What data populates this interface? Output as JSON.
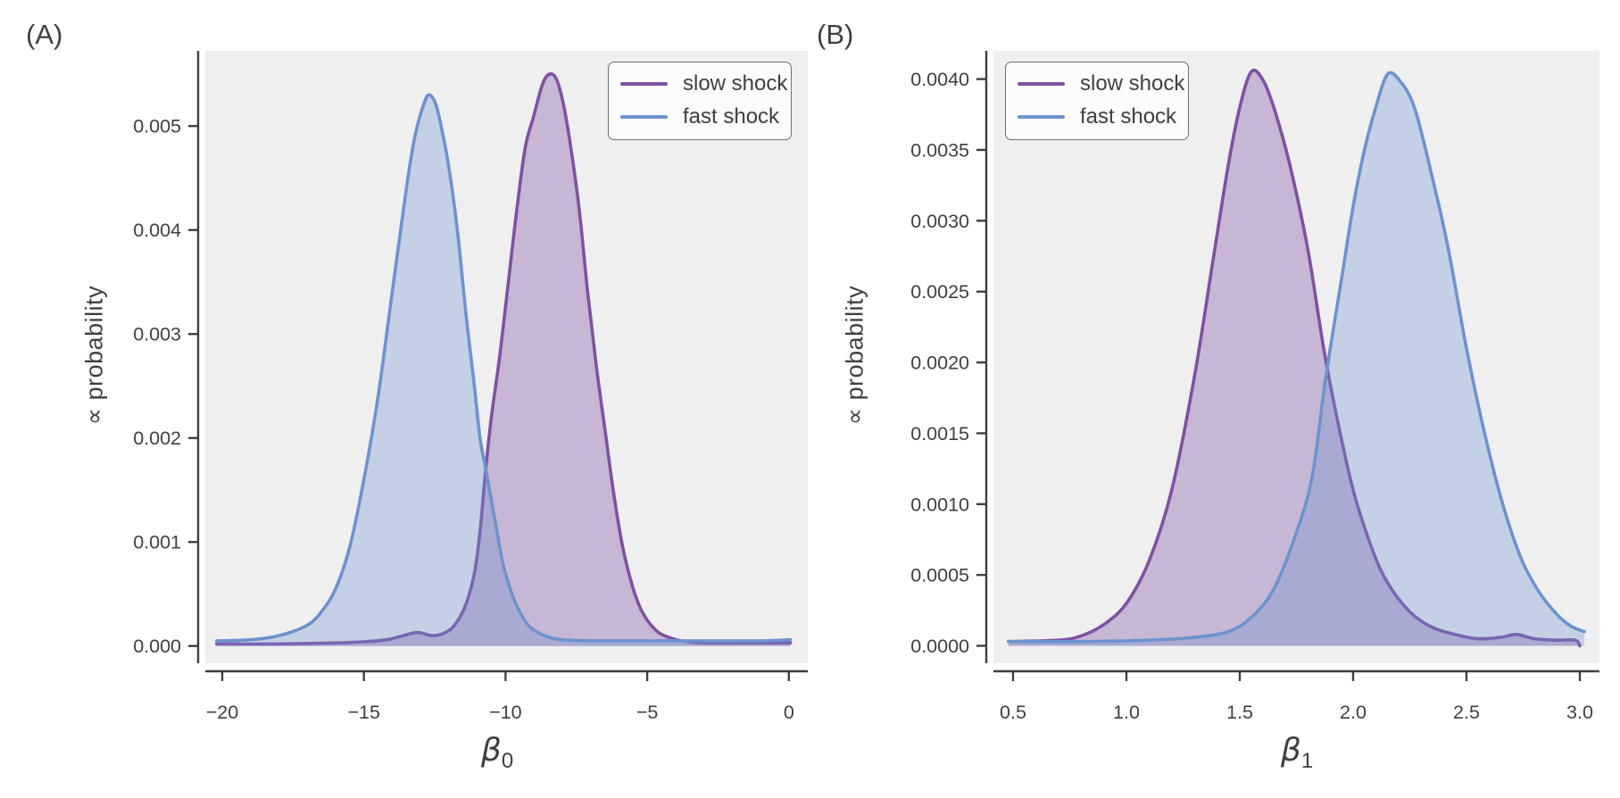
{
  "panels": [
    {
      "label": "(A)",
      "ylabel": "∝ probability",
      "xlabel_base": "β",
      "xlabel_sub": "0"
    },
    {
      "label": "(B)",
      "ylabel": "∝ probability",
      "xlabel_base": "β",
      "xlabel_sub": "1"
    }
  ],
  "legend": {
    "items": [
      {
        "label": "slow shock",
        "color": "#7e52a3"
      },
      {
        "label": "fast shock",
        "color": "#6d93ce"
      }
    ]
  },
  "colors": {
    "plot_background": "#efeff0",
    "spine": "#3d3f44",
    "tick_label": "#3d3f44",
    "slow_shock_line": "#7e52a3",
    "fast_shock_line": "#6d93ce",
    "slow_shock_fill_opacity": 0.36,
    "fast_shock_fill_opacity": 0.33
  },
  "chart_data": [
    {
      "type": "area",
      "title": "",
      "xlabel": "β₀",
      "ylabel": "∝ probability",
      "xlim": [
        -20.6,
        0.67
      ],
      "ylim": [
        0,
        0.00589
      ],
      "grid": false,
      "legend_position": "upper right",
      "xticks": [
        {
          "v": -20,
          "label": "−20"
        },
        {
          "v": -15,
          "label": "−15"
        },
        {
          "v": -10,
          "label": "−10"
        },
        {
          "v": -5,
          "label": "−5"
        },
        {
          "v": 0,
          "label": "0"
        }
      ],
      "yticks": [
        {
          "v": 0.0,
          "label": "0.000"
        },
        {
          "v": 0.001,
          "label": "0.001"
        },
        {
          "v": 0.002,
          "label": "0.002"
        },
        {
          "v": 0.003,
          "label": "0.003"
        },
        {
          "v": 0.004,
          "label": "0.004"
        },
        {
          "v": 0.005,
          "label": "0.005"
        }
      ],
      "series": [
        {
          "name": "slow shock",
          "peak_x": -8.45,
          "peak_y": 0.0055,
          "points": [
            [
              -20.2,
              2e-05
            ],
            [
              -18,
              2e-05
            ],
            [
              -16,
              3e-05
            ],
            [
              -15,
              4e-05
            ],
            [
              -14.2,
              6e-05
            ],
            [
              -13.6,
              0.0001
            ],
            [
              -13.1,
              0.00013
            ],
            [
              -12.6,
              0.0001
            ],
            [
              -12.2,
              0.00012
            ],
            [
              -11.8,
              0.0002
            ],
            [
              -11.4,
              0.0004
            ],
            [
              -11.1,
              0.0007
            ],
            [
              -10.9,
              0.0011
            ],
            [
              -10.7,
              0.0017
            ],
            [
              -10.5,
              0.0022
            ],
            [
              -10.2,
              0.0028
            ],
            [
              -9.9,
              0.0035
            ],
            [
              -9.6,
              0.0042
            ],
            [
              -9.3,
              0.0048
            ],
            [
              -9.0,
              0.0051
            ],
            [
              -8.7,
              0.0054
            ],
            [
              -8.45,
              0.0055
            ],
            [
              -8.2,
              0.00545
            ],
            [
              -7.95,
              0.0052
            ],
            [
              -7.7,
              0.0048
            ],
            [
              -7.4,
              0.0042
            ],
            [
              -7.1,
              0.0034
            ],
            [
              -6.8,
              0.0027
            ],
            [
              -6.5,
              0.0021
            ],
            [
              -6.2,
              0.0015
            ],
            [
              -5.9,
              0.001
            ],
            [
              -5.6,
              0.00065
            ],
            [
              -5.3,
              0.0004
            ],
            [
              -5.0,
              0.00025
            ],
            [
              -4.6,
              0.00013
            ],
            [
              -4.2,
              8e-05
            ],
            [
              -3.8,
              5e-05
            ],
            [
              -3.0,
              3e-05
            ],
            [
              -1.5,
              3e-05
            ],
            [
              0.05,
              3e-05
            ]
          ]
        },
        {
          "name": "fast shock",
          "peak_x": -12.7,
          "peak_y": 0.0053,
          "points": [
            [
              -20.2,
              5e-05
            ],
            [
              -19,
              6e-05
            ],
            [
              -18,
              0.0001
            ],
            [
              -17,
              0.0002
            ],
            [
              -16.5,
              0.00033
            ],
            [
              -16,
              0.00055
            ],
            [
              -15.5,
              0.00095
            ],
            [
              -15,
              0.0016
            ],
            [
              -14.5,
              0.0024
            ],
            [
              -14,
              0.0034
            ],
            [
              -13.5,
              0.0044
            ],
            [
              -13.2,
              0.0049
            ],
            [
              -12.9,
              0.0052
            ],
            [
              -12.7,
              0.0053
            ],
            [
              -12.45,
              0.0052
            ],
            [
              -12.2,
              0.0049
            ],
            [
              -12,
              0.0046
            ],
            [
              -11.7,
              0.004
            ],
            [
              -11.4,
              0.0032
            ],
            [
              -11.1,
              0.0025
            ],
            [
              -10.9,
              0.002
            ],
            [
              -10.7,
              0.0017
            ],
            [
              -10.4,
              0.00125
            ],
            [
              -10.1,
              0.0008
            ],
            [
              -9.8,
              0.00052
            ],
            [
              -9.5,
              0.00033
            ],
            [
              -9.2,
              0.0002
            ],
            [
              -8.8,
              0.00012
            ],
            [
              -8.4,
              8e-05
            ],
            [
              -8.0,
              6e-05
            ],
            [
              -7.0,
              5e-05
            ],
            [
              -5.0,
              5e-05
            ],
            [
              -3.0,
              5e-05
            ],
            [
              -1.0,
              5e-05
            ],
            [
              0.05,
              6e-05
            ]
          ]
        }
      ]
    },
    {
      "type": "area",
      "title": "",
      "xlabel": "β₁",
      "ylabel": "∝ probability",
      "xlim": [
        0.47,
        3.09
      ],
      "ylim": [
        0,
        0.0042
      ],
      "grid": false,
      "legend_position": "upper left",
      "xticks": [
        {
          "v": 0.5,
          "label": "0.5"
        },
        {
          "v": 1.0,
          "label": "1.0"
        },
        {
          "v": 1.5,
          "label": "1.5"
        },
        {
          "v": 2.0,
          "label": "2.0"
        },
        {
          "v": 2.5,
          "label": "2.5"
        },
        {
          "v": 3.0,
          "label": "3.0"
        }
      ],
      "yticks": [
        {
          "v": 0.0,
          "label": "0.0000"
        },
        {
          "v": 0.0005,
          "label": "0.0005"
        },
        {
          "v": 0.001,
          "label": "0.0010"
        },
        {
          "v": 0.0015,
          "label": "0.0015"
        },
        {
          "v": 0.002,
          "label": "0.0020"
        },
        {
          "v": 0.0025,
          "label": "0.0025"
        },
        {
          "v": 0.003,
          "label": "0.0030"
        },
        {
          "v": 0.0035,
          "label": "0.0035"
        },
        {
          "v": 0.004,
          "label": "0.0040"
        }
      ],
      "series": [
        {
          "name": "slow shock",
          "peak_x": 1.55,
          "peak_y": 0.00405,
          "points": [
            [
              0.48,
              3e-05
            ],
            [
              0.7,
              4e-05
            ],
            [
              0.8,
              7e-05
            ],
            [
              0.9,
              0.00015
            ],
            [
              1.0,
              0.0003
            ],
            [
              1.1,
              0.0006
            ],
            [
              1.2,
              0.0011
            ],
            [
              1.3,
              0.0019
            ],
            [
              1.38,
              0.0027
            ],
            [
              1.45,
              0.0034
            ],
            [
              1.5,
              0.0038
            ],
            [
              1.55,
              0.00405
            ],
            [
              1.6,
              0.004
            ],
            [
              1.65,
              0.0038
            ],
            [
              1.72,
              0.0034
            ],
            [
              1.8,
              0.0028
            ],
            [
              1.87,
              0.0021
            ],
            [
              1.93,
              0.0016
            ],
            [
              2.0,
              0.0011
            ],
            [
              2.08,
              0.0007
            ],
            [
              2.15,
              0.00045
            ],
            [
              2.25,
              0.00024
            ],
            [
              2.35,
              0.00013
            ],
            [
              2.45,
              8e-05
            ],
            [
              2.55,
              5e-05
            ],
            [
              2.65,
              6e-05
            ],
            [
              2.72,
              8e-05
            ],
            [
              2.8,
              5e-05
            ],
            [
              2.9,
              4e-05
            ],
            [
              2.98,
              4e-05
            ],
            [
              3.0,
              0.0
            ]
          ]
        },
        {
          "name": "fast shock",
          "peak_x": 2.15,
          "peak_y": 0.00403,
          "points": [
            [
              0.48,
              3e-05
            ],
            [
              0.8,
              3e-05
            ],
            [
              1.1,
              4e-05
            ],
            [
              1.3,
              6e-05
            ],
            [
              1.45,
              0.0001
            ],
            [
              1.55,
              0.0002
            ],
            [
              1.65,
              0.0004
            ],
            [
              1.75,
              0.0008
            ],
            [
              1.82,
              0.0012
            ],
            [
              1.88,
              0.0019
            ],
            [
              1.95,
              0.0026
            ],
            [
              2.0,
              0.0031
            ],
            [
              2.05,
              0.0035
            ],
            [
              2.1,
              0.0038
            ],
            [
              2.15,
              0.00403
            ],
            [
              2.2,
              0.004
            ],
            [
              2.27,
              0.0038
            ],
            [
              2.35,
              0.0033
            ],
            [
              2.42,
              0.0028
            ],
            [
              2.5,
              0.0021
            ],
            [
              2.58,
              0.0015
            ],
            [
              2.66,
              0.001
            ],
            [
              2.74,
              0.00062
            ],
            [
              2.82,
              0.00038
            ],
            [
              2.9,
              0.00022
            ],
            [
              2.96,
              0.00014
            ],
            [
              3.02,
              0.0001
            ]
          ]
        }
      ]
    }
  ]
}
